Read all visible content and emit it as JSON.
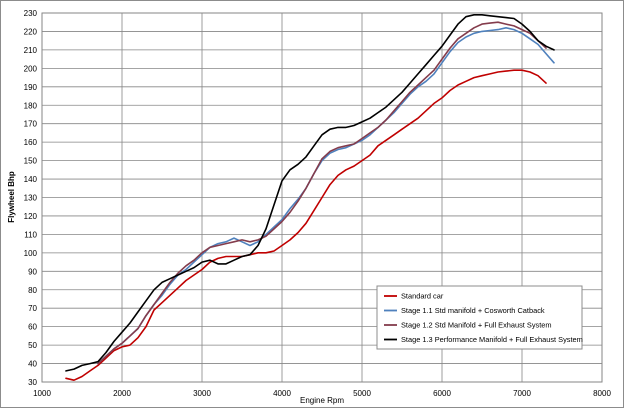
{
  "chart_data": {
    "type": "line",
    "title": "",
    "xlabel": "Engine Rpm",
    "ylabel": "Flywheel Bhp",
    "xlim": [
      1000,
      8000
    ],
    "ylim": [
      30,
      230
    ],
    "x_ticks": [
      1000,
      2000,
      3000,
      4000,
      5000,
      6000,
      7000,
      8000
    ],
    "y_ticks": [
      30,
      40,
      50,
      60,
      70,
      80,
      90,
      100,
      110,
      120,
      130,
      140,
      150,
      160,
      170,
      180,
      190,
      200,
      210,
      220,
      230
    ],
    "grid": "on",
    "legend_position": "bottom-right",
    "series": [
      {
        "name": "Standard car",
        "color": "#c00000",
        "x": [
          1300,
          1400,
          1500,
          1600,
          1700,
          1800,
          1900,
          2000,
          2100,
          2200,
          2300,
          2400,
          2500,
          2600,
          2700,
          2800,
          2900,
          3000,
          3100,
          3200,
          3300,
          3400,
          3500,
          3600,
          3700,
          3800,
          3900,
          4000,
          4100,
          4200,
          4300,
          4400,
          4500,
          4600,
          4700,
          4800,
          4900,
          5000,
          5100,
          5200,
          5300,
          5400,
          5500,
          5600,
          5700,
          5800,
          5900,
          6000,
          6100,
          6200,
          6300,
          6400,
          6500,
          6600,
          6700,
          6800,
          6900,
          7000,
          7100,
          7200,
          7300
        ],
        "values": [
          32,
          31,
          33,
          36,
          39,
          43,
          47,
          49,
          50,
          54,
          60,
          69,
          73,
          77,
          81,
          85,
          88,
          91,
          95,
          97,
          98,
          98,
          98,
          99,
          100,
          100,
          101,
          104,
          107,
          111,
          116,
          123,
          130,
          137,
          142,
          145,
          147,
          150,
          153,
          158,
          161,
          164,
          167,
          170,
          173,
          177,
          181,
          184,
          188,
          191,
          193,
          195,
          196,
          197,
          198,
          198.5,
          199,
          199,
          198,
          196,
          192
        ]
      },
      {
        "name": "Stage 1.1 Std manifold + Cosworth Catback",
        "color": "#4f81bd",
        "x": [
          1700,
          1800,
          1900,
          2000,
          2100,
          2200,
          2300,
          2400,
          2500,
          2600,
          2700,
          2800,
          2900,
          3000,
          3100,
          3200,
          3300,
          3400,
          3500,
          3600,
          3700,
          3800,
          3900,
          4000,
          4100,
          4200,
          4300,
          4400,
          4500,
          4600,
          4700,
          4800,
          4900,
          5000,
          5100,
          5200,
          5300,
          5400,
          5500,
          5600,
          5700,
          5800,
          5900,
          6000,
          6100,
          6200,
          6300,
          6400,
          6500,
          6600,
          6700,
          6800,
          6900,
          7000,
          7100,
          7200,
          7300,
          7400
        ],
        "values": [
          40,
          44,
          48,
          51,
          55,
          59,
          66,
          72,
          77,
          83,
          88,
          91,
          95,
          99,
          103,
          105,
          106,
          108,
          106,
          104,
          106,
          110,
          114,
          118,
          124,
          129,
          135,
          143,
          150,
          154,
          156,
          157,
          159,
          161,
          164,
          168,
          172,
          176,
          181,
          186,
          190,
          193,
          197,
          203,
          209,
          214,
          217,
          219,
          220,
          220.5,
          221,
          222,
          221,
          219,
          216,
          213,
          208,
          203
        ]
      },
      {
        "name": "Stage 1.2 Std Manifold + Full Exhaust System",
        "color": "#843c4c",
        "x": [
          1700,
          1800,
          1900,
          2000,
          2100,
          2200,
          2300,
          2400,
          2500,
          2600,
          2700,
          2800,
          2900,
          3000,
          3100,
          3200,
          3300,
          3400,
          3500,
          3600,
          3700,
          3800,
          3900,
          4000,
          4100,
          4200,
          4300,
          4400,
          4500,
          4600,
          4700,
          4800,
          4900,
          5000,
          5100,
          5200,
          5300,
          5400,
          5500,
          5600,
          5700,
          5800,
          5900,
          6000,
          6100,
          6200,
          6300,
          6400,
          6500,
          6600,
          6700,
          6800,
          6900,
          7000,
          7100,
          7200,
          7300
        ],
        "values": [
          40,
          44,
          48,
          51,
          55,
          59,
          66,
          72,
          78,
          84,
          89,
          93,
          96,
          100,
          103,
          104,
          105,
          106,
          107,
          106,
          107,
          109,
          113,
          117,
          122,
          128,
          135,
          143,
          151,
          155,
          157,
          158,
          159,
          162,
          165,
          168,
          172,
          177,
          182,
          187,
          191,
          195,
          199,
          205,
          211,
          216,
          219,
          222,
          224,
          224.5,
          225,
          224,
          223,
          221,
          219,
          215,
          211
        ]
      },
      {
        "name": "Stage 1.3 Performance Manifold + Full Exhaust System",
        "color": "#000000",
        "x": [
          1300,
          1400,
          1500,
          1600,
          1700,
          1800,
          1900,
          2000,
          2100,
          2200,
          2300,
          2400,
          2500,
          2600,
          2700,
          2800,
          2900,
          3000,
          3100,
          3200,
          3300,
          3400,
          3500,
          3600,
          3700,
          3800,
          3900,
          4000,
          4100,
          4200,
          4300,
          4400,
          4500,
          4600,
          4700,
          4800,
          4900,
          5000,
          5100,
          5200,
          5300,
          5400,
          5500,
          5600,
          5700,
          5800,
          5900,
          6000,
          6100,
          6200,
          6300,
          6400,
          6500,
          6600,
          6700,
          6800,
          6900,
          7000,
          7100,
          7200,
          7300,
          7400
        ],
        "values": [
          36,
          37,
          39,
          40,
          41,
          46,
          52,
          57,
          62,
          68,
          74,
          80,
          84,
          86,
          88,
          90,
          92,
          95,
          96,
          94,
          94,
          96,
          98,
          99,
          104,
          113,
          126,
          139,
          145,
          148,
          152,
          158,
          164,
          167,
          168,
          168,
          169,
          171,
          173,
          176,
          179,
          183,
          187,
          192,
          197,
          202,
          207,
          212,
          218,
          224,
          228,
          229,
          229,
          228.5,
          228,
          227.5,
          227,
          224,
          220,
          215,
          212,
          210
        ]
      }
    ]
  }
}
